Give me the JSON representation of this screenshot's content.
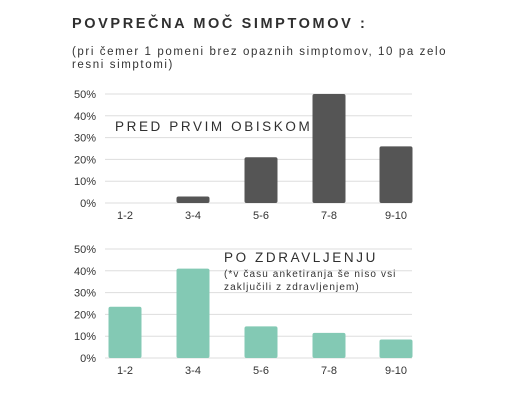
{
  "header": {
    "title": "POVPREČNA MOČ SIMPTOMOV :",
    "subtitle": "(pri čemer 1 pomeni brez opaznih simptomov, 10 pa zelo resni simptomi)"
  },
  "colors": {
    "before": "#555555",
    "after": "#83c9b4",
    "grid": "#dddddd",
    "text": "#2f2f2f"
  },
  "chart_data": [
    {
      "type": "bar",
      "title": "PRED PRVIM OBISKOM",
      "note": [],
      "categories": [
        "1-2",
        "3-4",
        "5-6",
        "7-8",
        "9-10"
      ],
      "values": [
        0,
        3,
        21,
        50,
        26
      ],
      "yticks": [
        "50%",
        "40%",
        "30%",
        "20%",
        "10%",
        "0%"
      ],
      "ylim": [
        0,
        50
      ],
      "unit": "%",
      "grid": true,
      "color": "#555555"
    },
    {
      "type": "bar",
      "title": "PO ZDRAVLJENJU",
      "note": [
        "(*v času anketiranja še niso vsi",
        "zaključili z zdravljenjem)"
      ],
      "categories": [
        "1-2",
        "3-4",
        "5-6",
        "7-8",
        "9-10"
      ],
      "values": [
        23.5,
        41,
        14.5,
        11.5,
        8.5
      ],
      "yticks": [
        "50%",
        "40%",
        "30%",
        "20%",
        "10%",
        "0%"
      ],
      "ylim": [
        0,
        50
      ],
      "unit": "%",
      "grid": true,
      "color": "#83c9b4"
    }
  ]
}
